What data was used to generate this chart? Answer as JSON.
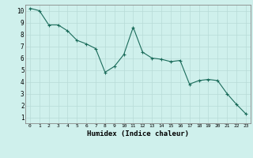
{
  "x": [
    0,
    1,
    2,
    3,
    4,
    5,
    6,
    7,
    8,
    9,
    10,
    11,
    12,
    13,
    14,
    15,
    16,
    17,
    18,
    19,
    20,
    21,
    22,
    23
  ],
  "y": [
    10.2,
    10.0,
    8.8,
    8.8,
    8.3,
    7.5,
    7.2,
    6.8,
    4.8,
    5.3,
    6.3,
    8.6,
    6.5,
    6.0,
    5.9,
    5.7,
    5.8,
    3.8,
    4.1,
    4.2,
    4.1,
    3.0,
    2.1,
    1.3
  ],
  "xlabel": "Humidex (Indice chaleur)",
  "xlim": [
    -0.5,
    23.5
  ],
  "ylim": [
    0.5,
    10.5
  ],
  "yticks": [
    1,
    2,
    3,
    4,
    5,
    6,
    7,
    8,
    9,
    10
  ],
  "xticks": [
    0,
    1,
    2,
    3,
    4,
    5,
    6,
    7,
    8,
    9,
    10,
    11,
    12,
    13,
    14,
    15,
    16,
    17,
    18,
    19,
    20,
    21,
    22,
    23
  ],
  "line_color": "#1a6b5a",
  "marker": "+",
  "bg_color": "#cff0ec",
  "grid_color": "#b8dbd7"
}
